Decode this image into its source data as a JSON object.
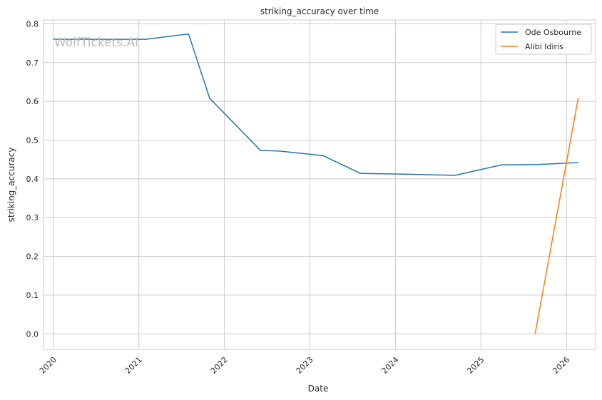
{
  "chart_data": {
    "type": "line",
    "title": "striking_accuracy over time",
    "xlabel": "Date",
    "ylabel": "striking_accuracy",
    "watermark": "WolfTickets.AI",
    "x_ticks": [
      "2020",
      "2021",
      "2022",
      "2023",
      "2024",
      "2025",
      "2026"
    ],
    "y_ticks": [
      "0.0",
      "0.1",
      "0.2",
      "0.3",
      "0.4",
      "0.5",
      "0.6",
      "0.7",
      "0.8"
    ],
    "xlim": [
      "2019-11-20",
      "2026-05-05"
    ],
    "ylim": [
      -0.04,
      0.81
    ],
    "grid": true,
    "legend_position": "top-right",
    "series": [
      {
        "name": "Ode Osbourne",
        "color": "#1f77b4",
        "points": [
          [
            "2020-01-01",
            0.76
          ],
          [
            "2021-01-30",
            0.76
          ],
          [
            "2021-08-01",
            0.774
          ],
          [
            "2021-10-30",
            0.608
          ],
          [
            "2022-06-05",
            0.473
          ],
          [
            "2022-08-20",
            0.472
          ],
          [
            "2023-02-25",
            0.46
          ],
          [
            "2023-08-05",
            0.414
          ],
          [
            "2024-02-25",
            0.412
          ],
          [
            "2024-09-10",
            0.409
          ],
          [
            "2025-03-30",
            0.436
          ],
          [
            "2025-08-30",
            0.437
          ],
          [
            "2026-02-20",
            0.442
          ]
        ]
      },
      {
        "name": "Alibi Idiris",
        "color": "#ff7f0e",
        "points": [
          [
            "2025-08-20",
            0.0
          ],
          [
            "2026-02-20",
            0.609
          ]
        ]
      }
    ]
  }
}
